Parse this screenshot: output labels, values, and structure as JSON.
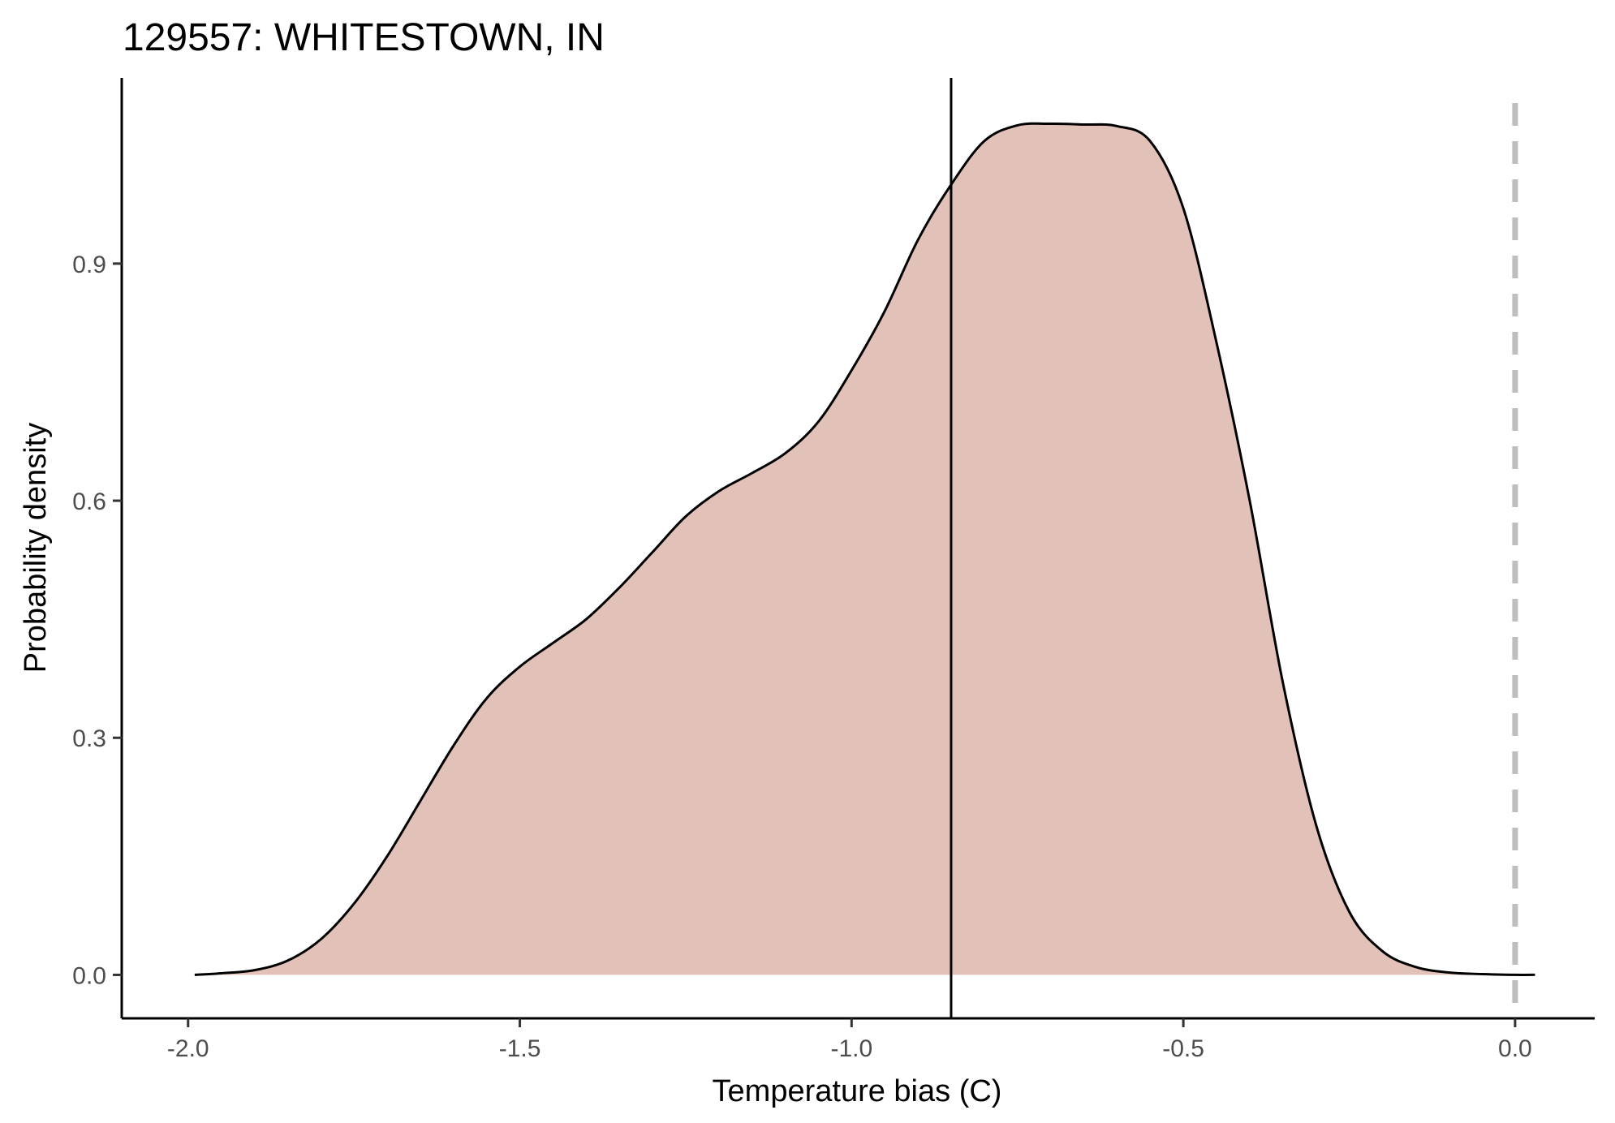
{
  "chart_data": {
    "type": "area",
    "title": "129557: WHITESTOWN, IN",
    "xlabel": "Temperature bias (C)",
    "ylabel": "Probability density",
    "xlim": [
      -2.1,
      0.12
    ],
    "ylim": [
      -0.055,
      1.135
    ],
    "x_ticks": [
      -2.0,
      -1.5,
      -1.0,
      -0.5,
      0.0
    ],
    "x_tick_labels": [
      "-2.0",
      "-1.5",
      "-1.0",
      "-0.5",
      "0.0"
    ],
    "y_ticks": [
      0.0,
      0.3,
      0.6,
      0.9
    ],
    "y_tick_labels": [
      "0.0",
      "0.3",
      "0.6",
      "0.9"
    ],
    "grid": false,
    "fill_color": "#e2c2b8",
    "line_color": "#000000",
    "density": {
      "x": [
        -1.99,
        -1.95,
        -1.9,
        -1.85,
        -1.8,
        -1.75,
        -1.7,
        -1.65,
        -1.6,
        -1.55,
        -1.5,
        -1.45,
        -1.4,
        -1.35,
        -1.3,
        -1.25,
        -1.2,
        -1.15,
        -1.1,
        -1.05,
        -1.0,
        -0.95,
        -0.9,
        -0.85,
        -0.8,
        -0.75,
        -0.7,
        -0.65,
        -0.6,
        -0.55,
        -0.5,
        -0.45,
        -0.4,
        -0.35,
        -0.3,
        -0.25,
        -0.2,
        -0.15,
        -0.1,
        -0.05,
        0.0,
        0.03
      ],
      "y": [
        0.0,
        0.002,
        0.006,
        0.018,
        0.045,
        0.09,
        0.15,
        0.22,
        0.29,
        0.35,
        0.39,
        0.42,
        0.45,
        0.49,
        0.535,
        0.58,
        0.612,
        0.635,
        0.66,
        0.7,
        0.765,
        0.84,
        0.93,
        1.0,
        1.055,
        1.075,
        1.077,
        1.076,
        1.074,
        1.055,
        0.97,
        0.8,
        0.6,
        0.37,
        0.19,
        0.08,
        0.03,
        0.01,
        0.003,
        0.001,
        0.0,
        0.0
      ]
    },
    "vline_solid": {
      "x": -0.85,
      "color": "#000000"
    },
    "vline_dashed": {
      "x": 0.0,
      "color": "#bebebe"
    }
  }
}
